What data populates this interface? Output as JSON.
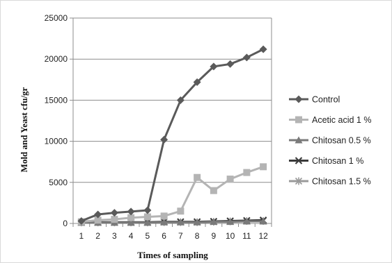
{
  "chart_data": {
    "type": "line",
    "xlabel": "Times of sampling",
    "ylabel": "Mold and Yeast   cfu/gr",
    "categories": [
      "1",
      "2",
      "3",
      "4",
      "5",
      "6",
      "7",
      "8",
      "9",
      "10",
      "11",
      "12"
    ],
    "ylim": [
      0,
      25000
    ],
    "yticks": [
      0,
      5000,
      10000,
      15000,
      20000,
      25000
    ],
    "grid": "horizontal",
    "legend_position": "right",
    "series": [
      {
        "name": "Control",
        "marker": "diamond",
        "color": "#5a5a5a",
        "values": [
          300,
          1100,
          1300,
          1450,
          1600,
          10200,
          15000,
          17200,
          19100,
          19400,
          20200,
          21200
        ]
      },
      {
        "name": "Acetic acid 1 %",
        "marker": "square",
        "color": "#b4b4b4",
        "values": [
          200,
          400,
          500,
          700,
          800,
          900,
          1500,
          5600,
          4000,
          5400,
          6200,
          6900
        ]
      },
      {
        "name": "Chitosan 0.5 %",
        "marker": "triangle",
        "color": "#7a7a7a",
        "values": [
          100,
          100,
          100,
          100,
          100,
          150,
          150,
          150,
          200,
          200,
          250,
          250
        ]
      },
      {
        "name": "Chitosan 1 %",
        "marker": "x",
        "color": "#3a3a3a",
        "values": [
          150,
          150,
          150,
          150,
          150,
          200,
          200,
          200,
          250,
          300,
          350,
          400
        ]
      },
      {
        "name": "Chitosan 1.5 %",
        "marker": "star",
        "color": "#9a9a9a",
        "values": [
          120,
          120,
          120,
          120,
          120,
          150,
          150,
          150,
          200,
          250,
          300,
          300
        ]
      }
    ]
  }
}
